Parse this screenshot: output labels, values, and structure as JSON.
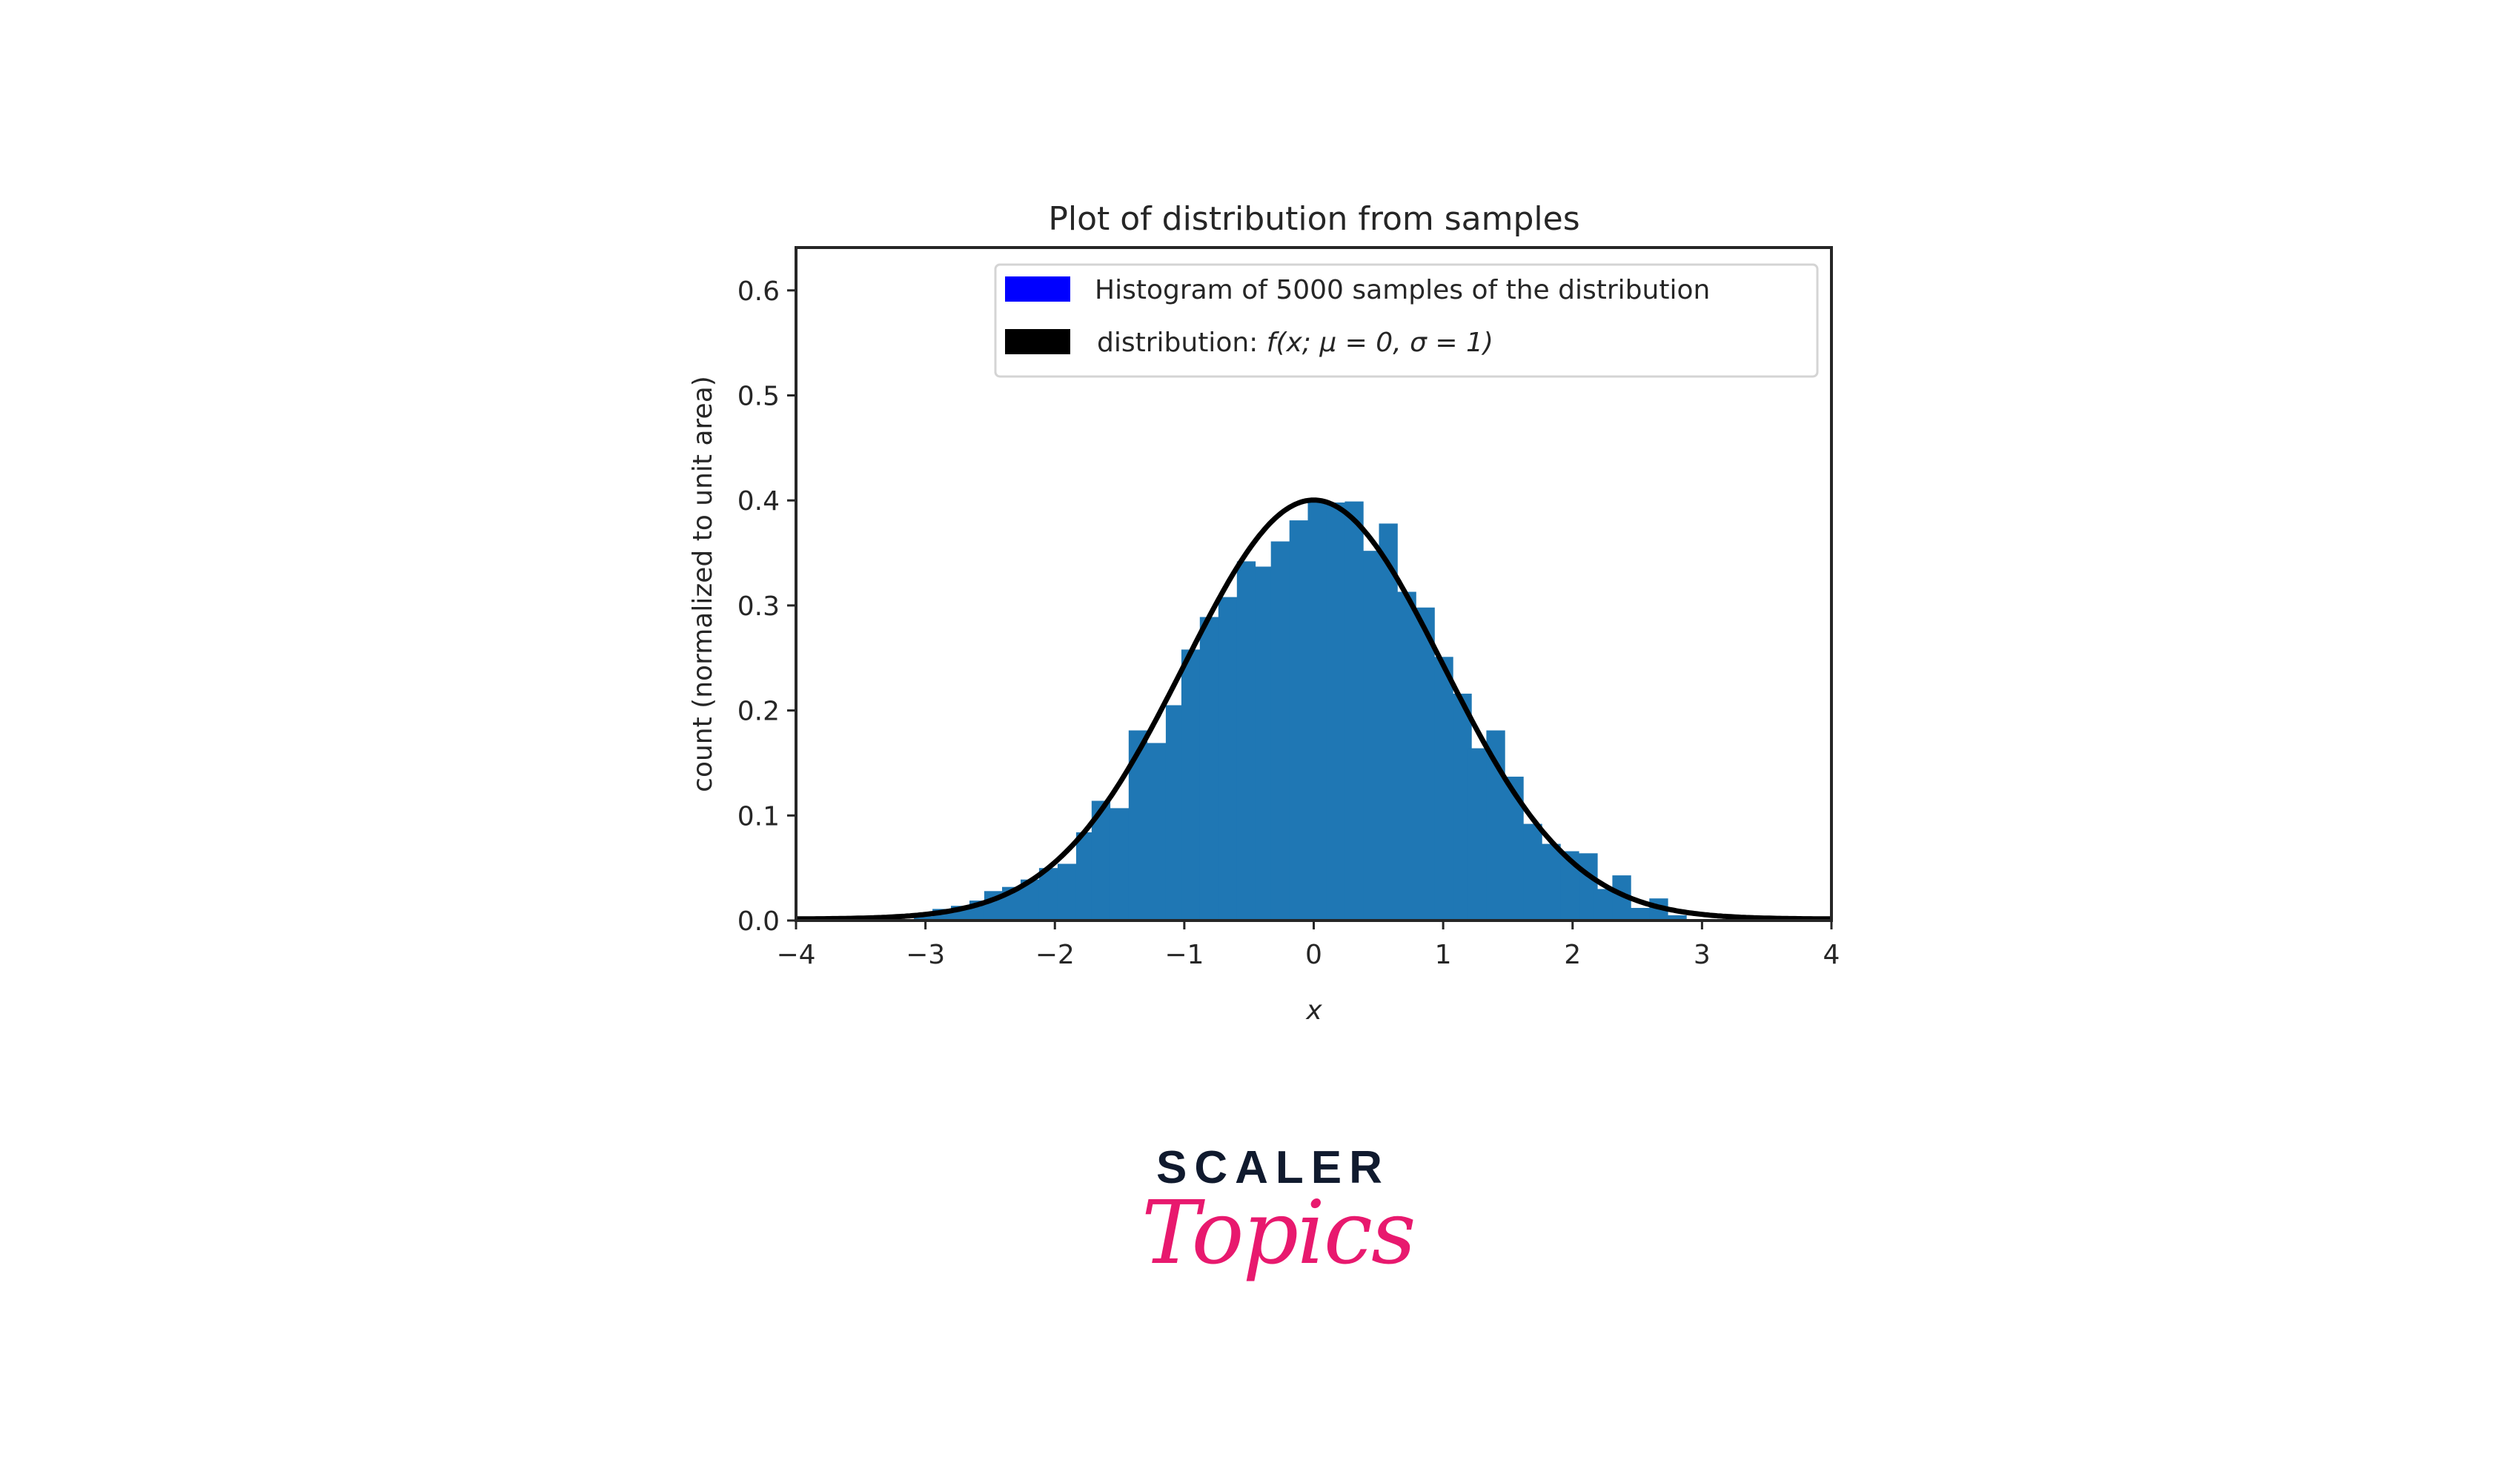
{
  "chart_data": {
    "type": "bar",
    "title": "Plot of distribution from samples",
    "xlabel": "x",
    "ylabel": "count (normalized to unit area)",
    "xlim": [
      -4,
      4
    ],
    "ylim": [
      0,
      0.64
    ],
    "grid": false,
    "legend_position": "upper right",
    "xticks": [
      "−4",
      "−3",
      "−2",
      "−1",
      "0",
      "1",
      "2",
      "3",
      "4"
    ],
    "xtick_values": [
      -4,
      -3,
      -2,
      -1,
      0,
      1,
      2,
      3,
      4
    ],
    "yticks": [
      "0.0",
      "0.1",
      "0.2",
      "0.3",
      "0.4",
      "0.5",
      "0.6"
    ],
    "ytick_values": [
      0.0,
      0.1,
      0.2,
      0.3,
      0.4,
      0.5,
      0.6
    ],
    "series": [
      {
        "name": "Histogram of 5000 samples of the distribution",
        "type": "histogram",
        "color": "#1f77b4",
        "legend_color": "#0000ff",
        "bin_width": 0.1415,
        "bin_left_edges": [
          -3.089,
          -2.946,
          -2.803,
          -2.66,
          -2.546,
          -2.408,
          -2.265,
          -2.122,
          -1.979,
          -1.836,
          -1.716,
          -1.573,
          -1.43,
          -1.287,
          -1.143,
          -1.023,
          -0.88,
          -0.737,
          -0.594,
          -0.451,
          -0.331,
          -0.188,
          -0.046,
          0.097,
          0.24,
          0.383,
          0.504,
          0.647,
          0.79,
          0.933,
          1.076,
          1.19,
          1.334,
          1.477,
          1.62,
          1.763,
          1.906,
          2.049,
          2.164,
          2.307,
          2.45,
          2.593,
          2.737
        ],
        "values": [
          0.004,
          0.011,
          0.014,
          0.019,
          0.028,
          0.032,
          0.039,
          0.05,
          0.054,
          0.084,
          0.114,
          0.107,
          0.181,
          0.169,
          0.205,
          0.258,
          0.289,
          0.308,
          0.342,
          0.337,
          0.361,
          0.381,
          0.4,
          0.398,
          0.399,
          0.352,
          0.378,
          0.313,
          0.298,
          0.251,
          0.216,
          0.164,
          0.181,
          0.137,
          0.092,
          0.073,
          0.066,
          0.064,
          0.03,
          0.043,
          0.012,
          0.021,
          0.005
        ]
      },
      {
        "name": "distribution: f(x; μ = 0, σ = 1)",
        "type": "line",
        "color": "#000000",
        "function": "standard normal pdf",
        "mu": 0,
        "sigma": 1,
        "peak_value": 0.399
      }
    ]
  },
  "legend": {
    "items": [
      {
        "label": "Histogram of 5000 samples of the distribution",
        "color": "#0000ff"
      },
      {
        "label_prefix": "distribution: ",
        "label_math": "f(x; μ = 0, σ = 1)",
        "color": "#000000"
      }
    ]
  },
  "logo": {
    "line1": "SCALER",
    "line2": "Topics",
    "line1_color": "#101a2e",
    "line2_color": "#e8196e"
  }
}
